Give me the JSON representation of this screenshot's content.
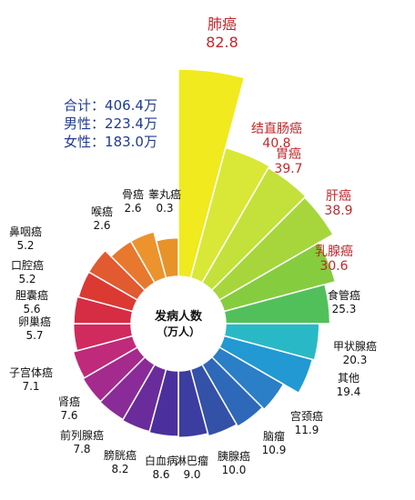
{
  "chart_data": {
    "type": "rose",
    "center_label": [
      "发病人数",
      "（万人）"
    ],
    "summary": [
      {
        "label": "合计",
        "value": "406.4万"
      },
      {
        "label": "男性",
        "value": "223.4万"
      },
      {
        "label": "女性",
        "value": "183.0万"
      }
    ],
    "categories": [
      "肺癌",
      "结直肠癌",
      "胃癌",
      "肝癌",
      "乳腺癌",
      "食管癌",
      "甲状腺癌",
      "其他",
      "宫颈癌",
      "脑瘤",
      "胰腺癌",
      "淋巴瘤",
      "白血病",
      "膀胱癌",
      "前列腺癌",
      "肾癌",
      "子宫体癌",
      "卵巢癌",
      "胆囊癌",
      "口腔癌",
      "鼻咽癌",
      "喉癌",
      "骨癌",
      "睾丸癌"
    ],
    "values": [
      82.8,
      40.8,
      39.7,
      38.9,
      30.6,
      25.3,
      20.3,
      19.4,
      11.9,
      10.9,
      10.0,
      9.0,
      8.6,
      8.2,
      7.8,
      7.6,
      7.1,
      5.7,
      5.6,
      5.2,
      5.2,
      2.6,
      2.6,
      0.3
    ],
    "value_labels": [
      "82.8",
      "40.8",
      "39.7",
      "38.9",
      "30.6",
      "25.3",
      "20.3",
      "19.4",
      "11.9",
      "10.9",
      "10.0",
      "9.0",
      "8.6",
      "8.2",
      "7.8",
      "7.6",
      "7.1",
      "5.7",
      "5.6",
      "5.2",
      "5.2",
      "2.6",
      "2.6",
      "0.3"
    ],
    "highlight_color": "#c0282d",
    "colors": [
      "#f0ea1e",
      "#d9e836",
      "#c3e13a",
      "#a6d63c",
      "#86cc3f",
      "#52c05a",
      "#29b9c6",
      "#2299d2",
      "#2a7fc6",
      "#2e68b8",
      "#3451a8",
      "#3b3da0",
      "#4b2f9d",
      "#6a2b9b",
      "#8a2c98",
      "#a52a8e",
      "#bf2a7a",
      "#d02a5e",
      "#d62c44",
      "#db3a33",
      "#e15a30",
      "#e7782e",
      "#ec932e",
      "#e8922a"
    ],
    "highlight_count": 5
  }
}
